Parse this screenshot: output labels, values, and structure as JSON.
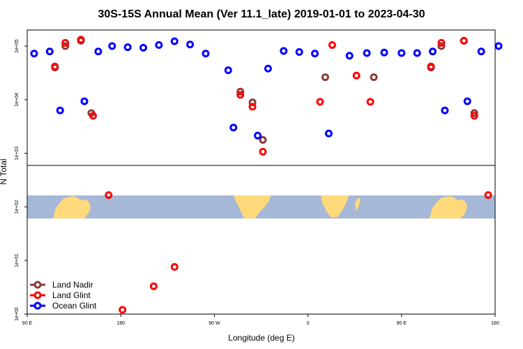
{
  "chart_data": {
    "type": "scatter",
    "title": "30S-15S Annual Mean (Ver 11.1_late)   2019-01-01 to 2023-04-30",
    "xlabel": "Longitude (deg E)",
    "ylabel": "N Total",
    "xlim": [
      90,
      360
    ],
    "ylim_log10": [
      0,
      5.3
    ],
    "y_scale": "log",
    "x_ticks": [
      {
        "value": 90,
        "label": "90 E"
      },
      {
        "value": 144,
        "label": "180"
      },
      {
        "value": 198,
        "label": "90 W"
      },
      {
        "value": 252,
        "label": "0"
      },
      {
        "value": 306,
        "label": "90 E"
      },
      {
        "value": 360,
        "label": "180"
      }
    ],
    "y_ticks": [
      {
        "value": 0,
        "label": "1e+00"
      },
      {
        "value": 1,
        "label": "1e+01"
      },
      {
        "value": 2,
        "label": "1e+02"
      },
      {
        "value": 3,
        "label": "1e+03"
      },
      {
        "value": 4,
        "label": "1e+04"
      },
      {
        "value": 5,
        "label": "1e+05"
      }
    ],
    "legend_position": "bottom-left",
    "series": [
      {
        "name": "Land Nadir",
        "color": "#8b3a3a",
        "points": [
          [
            106,
            4.6
          ],
          [
            112,
            5.0
          ],
          [
            121,
            5.1
          ],
          [
            127,
            3.75
          ],
          [
            213,
            4.15
          ],
          [
            220,
            3.95
          ],
          [
            226,
            3.25
          ],
          [
            262,
            4.42
          ],
          [
            290,
            4.42
          ],
          [
            323,
            4.6
          ],
          [
            329,
            5.0
          ],
          [
            342,
            5.1
          ],
          [
            348,
            3.75
          ]
        ]
      },
      {
        "name": "Land Glint",
        "color": "#ff0000",
        "points": [
          [
            106,
            4.62
          ],
          [
            112,
            5.06
          ],
          [
            121,
            5.12
          ],
          [
            128,
            3.7
          ],
          [
            137,
            2.22
          ],
          [
            145,
            0.08
          ],
          [
            163,
            0.52
          ],
          [
            175,
            0.88
          ],
          [
            213,
            4.09
          ],
          [
            220,
            3.87
          ],
          [
            226,
            3.03
          ],
          [
            259,
            3.96
          ],
          [
            266,
            5.02
          ],
          [
            280,
            4.45
          ],
          [
            288,
            3.96
          ],
          [
            323,
            4.62
          ],
          [
            329,
            5.06
          ],
          [
            342,
            5.1
          ],
          [
            348,
            3.7
          ],
          [
            356,
            2.22
          ]
        ]
      },
      {
        "name": "Ocean Glint",
        "color": "#0000ff",
        "points": [
          [
            94,
            4.86
          ],
          [
            103,
            4.9
          ],
          [
            109,
            3.8
          ],
          [
            123,
            3.97
          ],
          [
            131,
            4.9
          ],
          [
            139,
            5.0
          ],
          [
            148,
            4.98
          ],
          [
            157,
            4.97
          ],
          [
            166,
            5.02
          ],
          [
            175,
            5.09
          ],
          [
            184,
            5.03
          ],
          [
            193,
            4.86
          ],
          [
            206,
            4.55
          ],
          [
            209,
            3.48
          ],
          [
            223,
            3.33
          ],
          [
            229,
            4.58
          ],
          [
            238,
            4.91
          ],
          [
            247,
            4.89
          ],
          [
            256,
            4.86
          ],
          [
            264,
            3.37
          ],
          [
            276,
            4.82
          ],
          [
            286,
            4.87
          ],
          [
            296,
            4.88
          ],
          [
            306,
            4.87
          ],
          [
            315,
            4.87
          ],
          [
            324,
            4.9
          ],
          [
            331,
            3.8
          ],
          [
            344,
            3.97
          ],
          [
            352,
            4.9
          ],
          [
            362,
            5.0
          ]
        ]
      }
    ]
  }
}
